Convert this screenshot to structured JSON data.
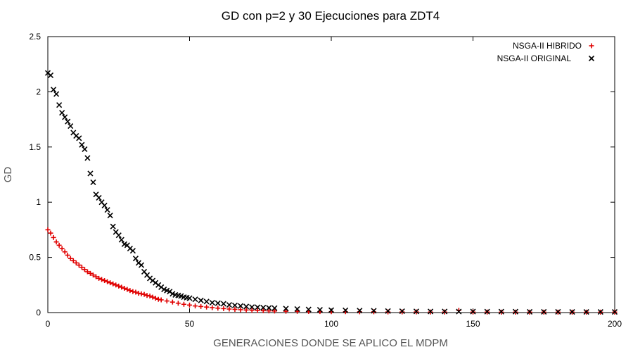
{
  "chart_data": {
    "type": "scatter",
    "title": "GD con p=2 y 30 Ejecuciones para ZDT4",
    "xlabel": "GENERACIONES DONDE SE APLICO EL MDPM",
    "ylabel": "GD",
    "xlim": [
      0,
      200
    ],
    "ylim": [
      0,
      2.5
    ],
    "xticks": [
      "0",
      "50",
      "100",
      "150",
      "200"
    ],
    "yticks": [
      "0",
      "0.5",
      "1",
      "1.5",
      "2",
      "2.5"
    ],
    "grid": false,
    "legend_position": "top-right",
    "series": [
      {
        "name": "NSGA-II HIBRIDO",
        "marker": "plus",
        "color": "#e00000",
        "points": [
          [
            0,
            0.75
          ],
          [
            1,
            0.72
          ],
          [
            2,
            0.68
          ],
          [
            3,
            0.64
          ],
          [
            4,
            0.61
          ],
          [
            5,
            0.58
          ],
          [
            6,
            0.55
          ],
          [
            7,
            0.52
          ],
          [
            8,
            0.49
          ],
          [
            9,
            0.47
          ],
          [
            10,
            0.45
          ],
          [
            11,
            0.43
          ],
          [
            12,
            0.41
          ],
          [
            13,
            0.39
          ],
          [
            14,
            0.37
          ],
          [
            15,
            0.355
          ],
          [
            16,
            0.34
          ],
          [
            17,
            0.325
          ],
          [
            18,
            0.31
          ],
          [
            19,
            0.3
          ],
          [
            20,
            0.29
          ],
          [
            21,
            0.28
          ],
          [
            22,
            0.27
          ],
          [
            23,
            0.26
          ],
          [
            24,
            0.25
          ],
          [
            25,
            0.24
          ],
          [
            26,
            0.23
          ],
          [
            27,
            0.22
          ],
          [
            28,
            0.21
          ],
          [
            29,
            0.2
          ],
          [
            30,
            0.19
          ],
          [
            31,
            0.185
          ],
          [
            32,
            0.175
          ],
          [
            33,
            0.17
          ],
          [
            34,
            0.165
          ],
          [
            35,
            0.155
          ],
          [
            36,
            0.15
          ],
          [
            37,
            0.14
          ],
          [
            38,
            0.13
          ],
          [
            39,
            0.12
          ],
          [
            40,
            0.115
          ],
          [
            42,
            0.105
          ],
          [
            44,
            0.095
          ],
          [
            46,
            0.085
          ],
          [
            48,
            0.075
          ],
          [
            50,
            0.068
          ],
          [
            52,
            0.06
          ],
          [
            54,
            0.055
          ],
          [
            56,
            0.05
          ],
          [
            58,
            0.045
          ],
          [
            60,
            0.04
          ],
          [
            62,
            0.036
          ],
          [
            64,
            0.032
          ],
          [
            66,
            0.029
          ],
          [
            68,
            0.026
          ],
          [
            70,
            0.023
          ],
          [
            72,
            0.021
          ],
          [
            74,
            0.019
          ],
          [
            76,
            0.017
          ],
          [
            78,
            0.015
          ],
          [
            80,
            0.014
          ],
          [
            84,
            0.012
          ],
          [
            88,
            0.011
          ],
          [
            92,
            0.01
          ],
          [
            96,
            0.009
          ],
          [
            100,
            0.008
          ],
          [
            105,
            0.008
          ],
          [
            110,
            0.007
          ],
          [
            115,
            0.007
          ],
          [
            120,
            0.006
          ],
          [
            125,
            0.006
          ],
          [
            130,
            0.006
          ],
          [
            135,
            0.005
          ],
          [
            140,
            0.005
          ],
          [
            145,
            0.02
          ],
          [
            150,
            0.005
          ],
          [
            155,
            0.005
          ],
          [
            160,
            0.004
          ],
          [
            165,
            0.004
          ],
          [
            170,
            0.004
          ],
          [
            175,
            0.004
          ],
          [
            180,
            0.004
          ],
          [
            185,
            0.004
          ],
          [
            190,
            0.004
          ],
          [
            195,
            0.004
          ],
          [
            200,
            0.004
          ]
        ]
      },
      {
        "name": "NSGA-II ORIGINAL",
        "marker": "cross",
        "color": "#000000",
        "points": [
          [
            0,
            2.17
          ],
          [
            1,
            2.15
          ],
          [
            2,
            2.02
          ],
          [
            3,
            1.98
          ],
          [
            4,
            1.88
          ],
          [
            5,
            1.81
          ],
          [
            6,
            1.77
          ],
          [
            7,
            1.73
          ],
          [
            8,
            1.69
          ],
          [
            9,
            1.63
          ],
          [
            10,
            1.6
          ],
          [
            11,
            1.58
          ],
          [
            12,
            1.52
          ],
          [
            13,
            1.48
          ],
          [
            14,
            1.4
          ],
          [
            15,
            1.26
          ],
          [
            16,
            1.18
          ],
          [
            17,
            1.07
          ],
          [
            18,
            1.04
          ],
          [
            19,
            1.0
          ],
          [
            20,
            0.97
          ],
          [
            21,
            0.93
          ],
          [
            22,
            0.88
          ],
          [
            23,
            0.78
          ],
          [
            24,
            0.73
          ],
          [
            25,
            0.7
          ],
          [
            26,
            0.66
          ],
          [
            27,
            0.62
          ],
          [
            28,
            0.61
          ],
          [
            29,
            0.58
          ],
          [
            30,
            0.56
          ],
          [
            31,
            0.49
          ],
          [
            32,
            0.45
          ],
          [
            33,
            0.43
          ],
          [
            34,
            0.37
          ],
          [
            35,
            0.34
          ],
          [
            36,
            0.31
          ],
          [
            37,
            0.29
          ],
          [
            38,
            0.27
          ],
          [
            39,
            0.25
          ],
          [
            40,
            0.23
          ],
          [
            41,
            0.21
          ],
          [
            42,
            0.2
          ],
          [
            43,
            0.19
          ],
          [
            44,
            0.17
          ],
          [
            45,
            0.16
          ],
          [
            46,
            0.155
          ],
          [
            47,
            0.15
          ],
          [
            48,
            0.14
          ],
          [
            49,
            0.135
          ],
          [
            50,
            0.13
          ],
          [
            52,
            0.12
          ],
          [
            54,
            0.11
          ],
          [
            56,
            0.1
          ],
          [
            58,
            0.09
          ],
          [
            60,
            0.085
          ],
          [
            62,
            0.08
          ],
          [
            64,
            0.07
          ],
          [
            66,
            0.065
          ],
          [
            68,
            0.06
          ],
          [
            70,
            0.055
          ],
          [
            72,
            0.05
          ],
          [
            74,
            0.048
          ],
          [
            76,
            0.045
          ],
          [
            78,
            0.043
          ],
          [
            80,
            0.04
          ],
          [
            84,
            0.036
          ],
          [
            88,
            0.032
          ],
          [
            92,
            0.028
          ],
          [
            96,
            0.025
          ],
          [
            100,
            0.022
          ],
          [
            105,
            0.02
          ],
          [
            110,
            0.018
          ],
          [
            115,
            0.016
          ],
          [
            120,
            0.014
          ],
          [
            125,
            0.012
          ],
          [
            130,
            0.011
          ],
          [
            135,
            0.01
          ],
          [
            140,
            0.01
          ],
          [
            145,
            0.009
          ],
          [
            150,
            0.009
          ],
          [
            155,
            0.008
          ],
          [
            160,
            0.008
          ],
          [
            165,
            0.008
          ],
          [
            170,
            0.007
          ],
          [
            175,
            0.007
          ],
          [
            180,
            0.007
          ],
          [
            185,
            0.006
          ],
          [
            190,
            0.006
          ],
          [
            195,
            0.006
          ],
          [
            200,
            0.006
          ]
        ]
      }
    ]
  }
}
